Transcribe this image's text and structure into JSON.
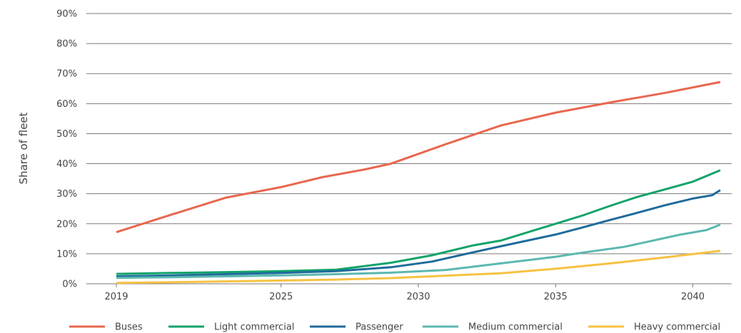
{
  "chart_data": {
    "type": "line",
    "ylabel": "Share of fleet",
    "ylim": [
      0,
      90
    ],
    "yticks": [
      0,
      10,
      20,
      30,
      40,
      50,
      60,
      70,
      80,
      90
    ],
    "ytick_labels": [
      "0%",
      "10%",
      "20%",
      "30%",
      "40%",
      "50%",
      "60%",
      "70%",
      "80%",
      "90%"
    ],
    "xlim": [
      2019,
      2041
    ],
    "xticks": [
      {
        "x": 2019,
        "label": "2019"
      },
      {
        "x": 2025,
        "label": "2025"
      },
      {
        "x": 2030,
        "label": "2030"
      },
      {
        "x": 2035,
        "label": "2035"
      },
      {
        "x": 2040,
        "label": "2040"
      }
    ],
    "grid": "horizontal",
    "legend_position": "bottom",
    "series": [
      {
        "name": "Buses",
        "color": "#e8674f",
        "points": [
          [
            2019,
            17.2
          ],
          [
            2021,
            23
          ],
          [
            2023,
            28.7
          ],
          [
            2025,
            32.2
          ],
          [
            2026.5,
            35.5
          ],
          [
            2028,
            38
          ],
          [
            2029,
            40
          ],
          [
            2031,
            46.5
          ],
          [
            2033,
            52.7
          ],
          [
            2035,
            57
          ],
          [
            2037,
            60.4
          ],
          [
            2039,
            63.6
          ],
          [
            2041,
            67.2
          ]
        ]
      },
      {
        "name": "Light commercial",
        "color": "#13a36b",
        "points": [
          [
            2019,
            3.3
          ],
          [
            2021,
            3.6
          ],
          [
            2023,
            3.9
          ],
          [
            2025,
            4.2
          ],
          [
            2027,
            4.7
          ],
          [
            2029,
            7
          ],
          [
            2030.5,
            9.5
          ],
          [
            2032,
            12.8
          ],
          [
            2033,
            14.4
          ],
          [
            2034,
            17.2
          ],
          [
            2035,
            20
          ],
          [
            2036,
            22.8
          ],
          [
            2037,
            26
          ],
          [
            2038,
            29
          ],
          [
            2039,
            31.5
          ],
          [
            2040,
            34
          ],
          [
            2041,
            37.8
          ]
        ]
      },
      {
        "name": "Passenger",
        "color": "#1f6b9b",
        "points": [
          [
            2019,
            2.5
          ],
          [
            2021,
            2.8
          ],
          [
            2023,
            3.2
          ],
          [
            2025,
            3.6
          ],
          [
            2027,
            4.2
          ],
          [
            2029,
            5.5
          ],
          [
            2030.5,
            7.4
          ],
          [
            2032,
            10.5
          ],
          [
            2033,
            12.5
          ],
          [
            2035,
            16.4
          ],
          [
            2036,
            18.8
          ],
          [
            2037,
            21.3
          ],
          [
            2038,
            23.7
          ],
          [
            2039,
            26.2
          ],
          [
            2040,
            28.4
          ],
          [
            2040.7,
            29.5
          ],
          [
            2041,
            31.2
          ]
        ]
      },
      {
        "name": "Medium commercial",
        "color": "#5bb8b0",
        "points": [
          [
            2019,
            2
          ],
          [
            2021,
            2.2
          ],
          [
            2023,
            2.5
          ],
          [
            2025,
            2.8
          ],
          [
            2027,
            3.2
          ],
          [
            2029,
            3.7
          ],
          [
            2031,
            4.6
          ],
          [
            2033,
            6.8
          ],
          [
            2035,
            9
          ],
          [
            2036,
            10.4
          ],
          [
            2037.5,
            12.3
          ],
          [
            2038.5,
            14.3
          ],
          [
            2039.5,
            16.3
          ],
          [
            2040.5,
            17.9
          ],
          [
            2041,
            19.7
          ]
        ]
      },
      {
        "name": "Heavy commercial",
        "color": "#f7c242",
        "points": [
          [
            2019,
            0.3
          ],
          [
            2021,
            0.5
          ],
          [
            2023,
            0.8
          ],
          [
            2025,
            1.1
          ],
          [
            2027,
            1.4
          ],
          [
            2029,
            1.9
          ],
          [
            2031,
            2.7
          ],
          [
            2033,
            3.5
          ],
          [
            2035,
            5
          ],
          [
            2037,
            6.8
          ],
          [
            2039,
            8.8
          ],
          [
            2041,
            11
          ]
        ]
      }
    ]
  }
}
